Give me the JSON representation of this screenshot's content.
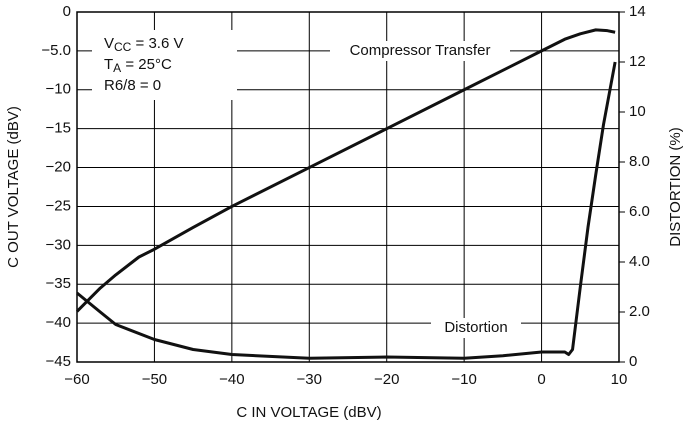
{
  "chart_data": {
    "type": "line",
    "xlabel": "C IN VOLTAGE (dBV)",
    "ylabel": "C OUT VOLTAGE (dBV)",
    "y2label": "DISTORTION (%)",
    "xlim": [
      -60,
      10
    ],
    "xticks": [
      {
        "value": -60,
        "label": "−60"
      },
      {
        "value": -50,
        "label": "−50"
      },
      {
        "value": -40,
        "label": "−40"
      },
      {
        "value": -30,
        "label": "−30"
      },
      {
        "value": -20,
        "label": "−20"
      },
      {
        "value": -10,
        "label": "−10"
      },
      0,
      10
    ],
    "ylim": [
      -45,
      0
    ],
    "yticks": [
      0,
      {
        "value": -5,
        "label": "−5.0"
      },
      {
        "value": -10,
        "label": "−10"
      },
      {
        "value": -15,
        "label": "−15"
      },
      {
        "value": -20,
        "label": "−20"
      },
      {
        "value": -25,
        "label": "−25"
      },
      {
        "value": -30,
        "label": "−30"
      },
      {
        "value": -35,
        "label": "−35"
      },
      {
        "value": -40,
        "label": "−40"
      },
      {
        "value": -45,
        "label": "−45"
      }
    ],
    "y2lim": [
      0,
      14
    ],
    "y2ticks": [
      0,
      {
        "value": 2,
        "label": "2.0"
      },
      {
        "value": 4,
        "label": "4.0"
      },
      {
        "value": 6,
        "label": "6.0"
      },
      {
        "value": 8,
        "label": "8.0"
      },
      10,
      12,
      14
    ],
    "grid": true,
    "annotations": [
      {
        "parts": [
          "V",
          "CC",
          " = 3.6 V"
        ]
      },
      {
        "parts": [
          "T",
          "A",
          " = 25°C"
        ]
      },
      {
        "parts": [
          "R6/8 = 0"
        ]
      }
    ],
    "series": [
      {
        "name": "Compressor Transfer",
        "color": "#111111",
        "x": [
          -60,
          -57,
          -55,
          -52,
          -50,
          -45,
          -40,
          -30,
          -20,
          -10,
          0,
          3,
          5,
          7,
          8.5,
          9.5
        ],
        "values": [
          -38.5,
          -35.5,
          -33.8,
          -31.5,
          -30.5,
          -27.7,
          -25,
          -20,
          -15,
          -10,
          -5,
          -3.5,
          -2.8,
          -2.3,
          -2.4,
          -2.6
        ]
      },
      {
        "name": "Distortion",
        "color": "#111111",
        "axis": "y2",
        "x": [
          -60,
          -57,
          -55,
          -50,
          -45,
          -40,
          -30,
          -20,
          -10,
          -5,
          0,
          3,
          3.5,
          4,
          5,
          6,
          7,
          8,
          9.5
        ],
        "values": [
          2.76,
          2.0,
          1.5,
          0.9,
          0.5,
          0.3,
          0.15,
          0.2,
          0.15,
          0.25,
          0.4,
          0.4,
          0.3,
          0.5,
          3,
          5.4,
          7.5,
          9.5,
          12
        ]
      }
    ]
  }
}
